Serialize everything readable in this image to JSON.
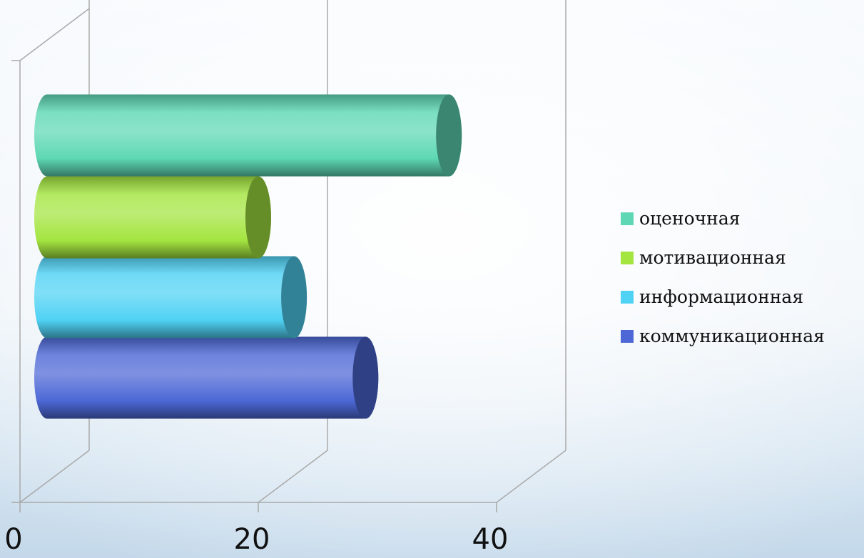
{
  "chart_data": {
    "type": "bar",
    "orientation": "horizontal",
    "style": "3d-cylinder",
    "categories": [
      "оценочная",
      "мотивационная",
      "информационная",
      "коммуникационная"
    ],
    "values": [
      36,
      20,
      23,
      29
    ],
    "colors": [
      "#5ed8b4",
      "#a4e540",
      "#50d2f4",
      "#4d68d6"
    ],
    "x_ticks": [
      "0",
      "20",
      "40"
    ],
    "xlim": [
      0,
      40
    ],
    "title": "",
    "xlabel": "",
    "ylabel": "",
    "grid": true,
    "legend": {
      "position": "right",
      "items": [
        "оценочная",
        "мотивационная",
        "информационная",
        "коммуникационная"
      ]
    }
  }
}
